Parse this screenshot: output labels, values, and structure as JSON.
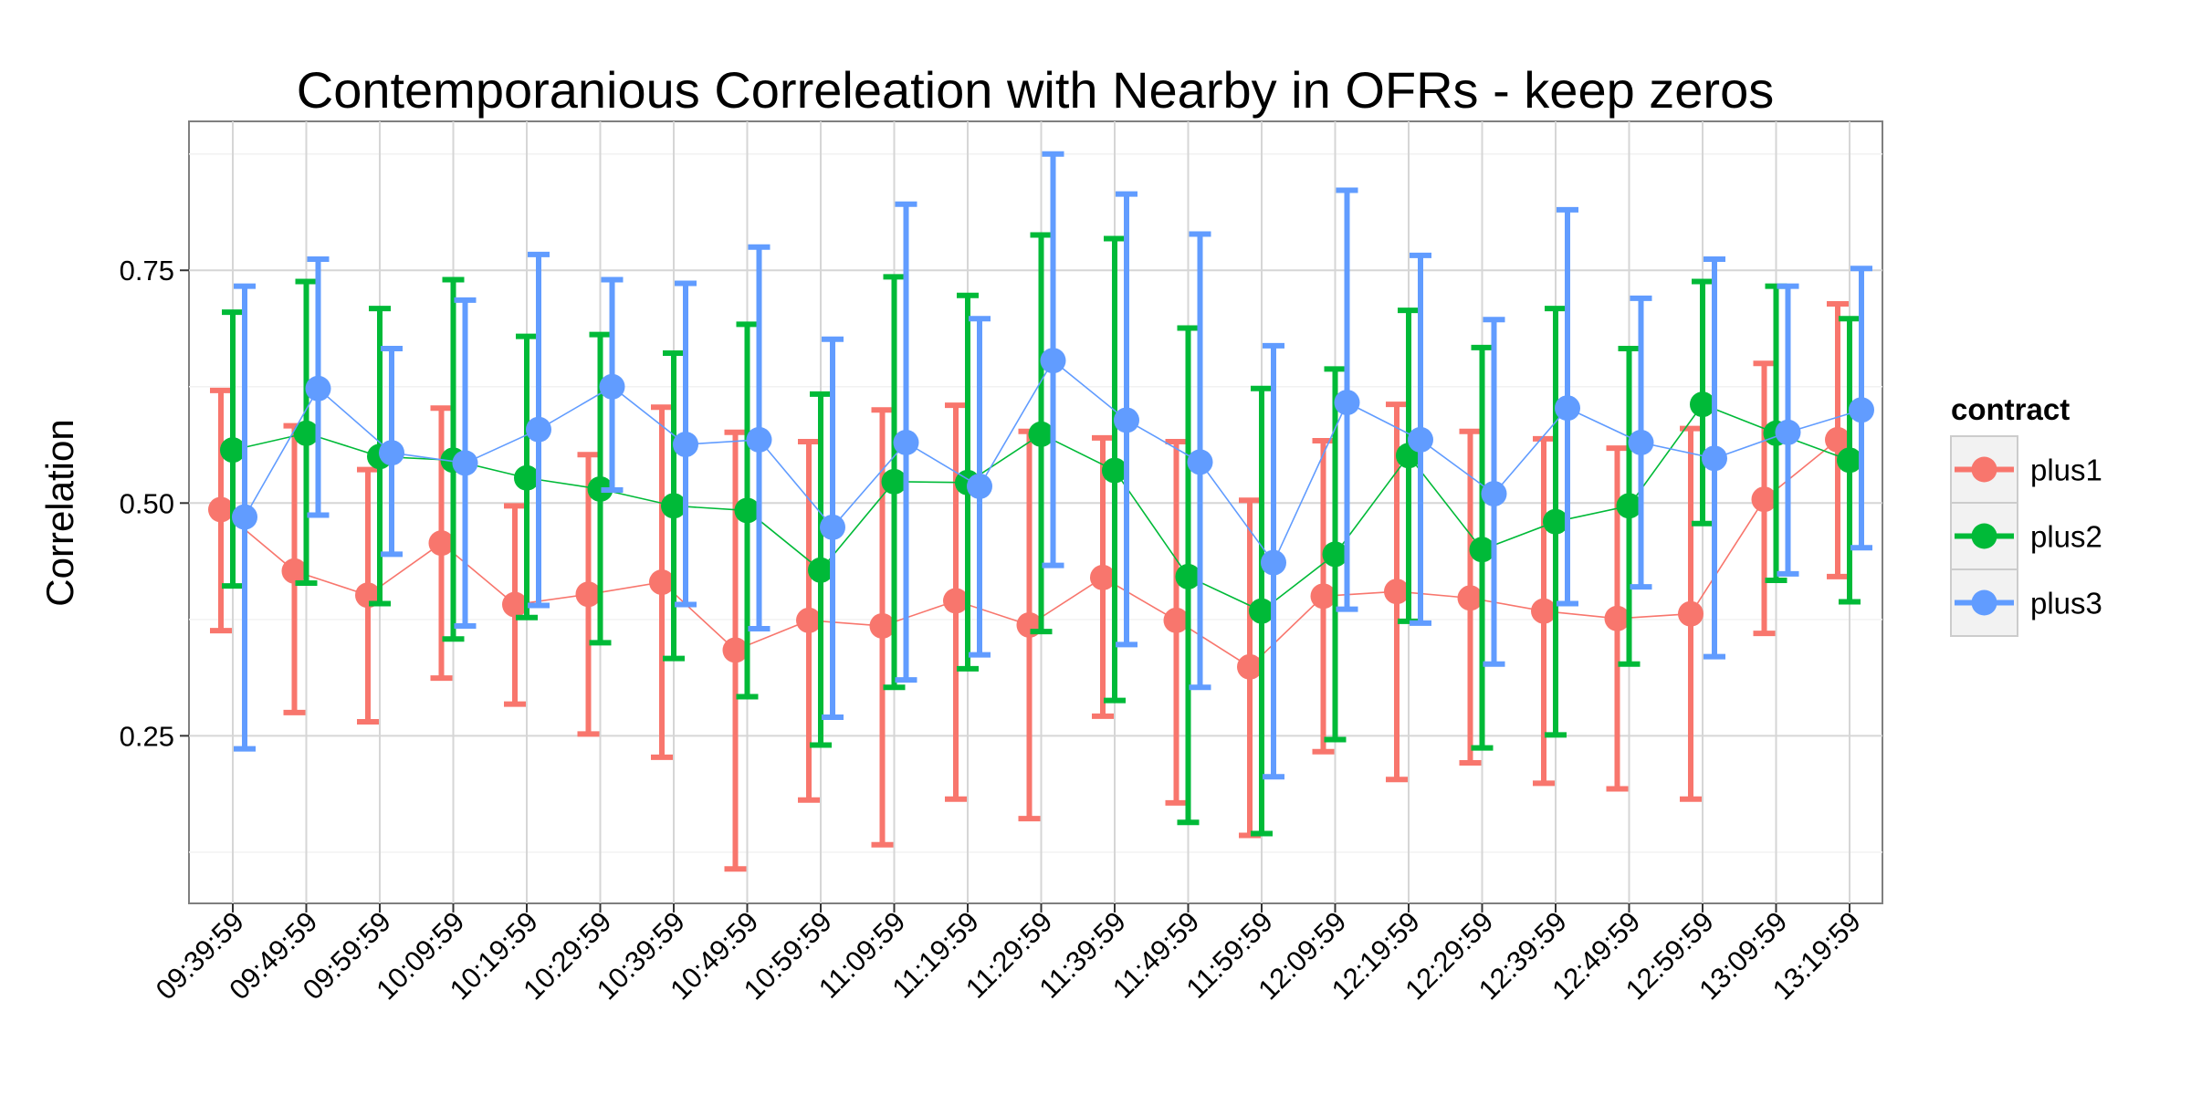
{
  "chart_data": {
    "type": "line",
    "title": "Contemporanious Correleation with Nearby in OFRs - keep zeros",
    "xlabel": "",
    "ylabel": "Correlation",
    "categories": [
      "09:39:59",
      "09:49:59",
      "09:59:59",
      "10:09:59",
      "10:19:59",
      "10:29:59",
      "10:39:59",
      "10:49:59",
      "10:59:59",
      "11:09:59",
      "11:19:59",
      "11:29:59",
      "11:39:59",
      "11:49:59",
      "11:59:59",
      "12:09:59",
      "12:19:59",
      "12:29:59",
      "12:39:59",
      "12:49:59",
      "12:59:59",
      "13:09:59",
      "13:19:59"
    ],
    "ylim": [
      0.07,
      0.91
    ],
    "yticks": [
      0.25,
      0.5,
      0.75
    ],
    "ytick_labels": [
      "0.25",
      "0.50",
      "0.75"
    ],
    "grid": true,
    "legend": {
      "title": "contract",
      "position": "right"
    },
    "series": [
      {
        "name": "plus1",
        "color": "#F8766D",
        "values": [
          0.493,
          0.427,
          0.401,
          0.457,
          0.391,
          0.402,
          0.415,
          0.342,
          0.374,
          0.368,
          0.395,
          0.369,
          0.42,
          0.374,
          0.324,
          0.4,
          0.405,
          0.398,
          0.384,
          0.376,
          0.381,
          0.504,
          0.568
        ],
        "lower": [
          0.363,
          0.275,
          0.265,
          0.312,
          0.284,
          0.252,
          0.227,
          0.107,
          0.181,
          0.133,
          0.182,
          0.161,
          0.271,
          0.178,
          0.143,
          0.233,
          0.203,
          0.221,
          0.199,
          0.193,
          0.182,
          0.36,
          0.421
        ],
        "upper": [
          0.621,
          0.583,
          0.536,
          0.602,
          0.497,
          0.552,
          0.603,
          0.576,
          0.566,
          0.6,
          0.605,
          0.577,
          0.57,
          0.566,
          0.503,
          0.567,
          0.606,
          0.577,
          0.569,
          0.559,
          0.58,
          0.65,
          0.714
        ]
      },
      {
        "name": "plus2",
        "color": "#00BA38",
        "values": [
          0.557,
          0.575,
          0.55,
          0.546,
          0.527,
          0.515,
          0.497,
          0.492,
          0.428,
          0.523,
          0.522,
          0.574,
          0.535,
          0.421,
          0.384,
          0.445,
          0.551,
          0.45,
          0.48,
          0.497,
          0.606,
          0.575,
          0.546
        ],
        "lower": [
          0.411,
          0.414,
          0.392,
          0.354,
          0.377,
          0.35,
          0.333,
          0.292,
          0.24,
          0.302,
          0.322,
          0.362,
          0.288,
          0.157,
          0.145,
          0.246,
          0.373,
          0.237,
          0.251,
          0.327,
          0.478,
          0.417,
          0.394
        ],
        "upper": [
          0.705,
          0.738,
          0.709,
          0.74,
          0.679,
          0.681,
          0.661,
          0.692,
          0.617,
          0.743,
          0.723,
          0.788,
          0.784,
          0.688,
          0.623,
          0.644,
          0.707,
          0.667,
          0.709,
          0.666,
          0.738,
          0.733,
          0.698
        ]
      },
      {
        "name": "plus3",
        "color": "#619CFF",
        "values": [
          0.485,
          0.623,
          0.554,
          0.543,
          0.579,
          0.625,
          0.563,
          0.568,
          0.474,
          0.565,
          0.518,
          0.653,
          0.589,
          0.544,
          0.436,
          0.608,
          0.568,
          0.51,
          0.602,
          0.565,
          0.548,
          0.576,
          0.6
        ],
        "lower": [
          0.236,
          0.487,
          0.445,
          0.368,
          0.39,
          0.514,
          0.391,
          0.365,
          0.27,
          0.31,
          0.337,
          0.433,
          0.348,
          0.302,
          0.206,
          0.386,
          0.371,
          0.327,
          0.392,
          0.41,
          0.335,
          0.424,
          0.452
        ],
        "upper": [
          0.733,
          0.762,
          0.666,
          0.718,
          0.767,
          0.74,
          0.736,
          0.775,
          0.676,
          0.821,
          0.698,
          0.875,
          0.832,
          0.789,
          0.669,
          0.836,
          0.766,
          0.697,
          0.815,
          0.72,
          0.762,
          0.733,
          0.752
        ]
      }
    ]
  }
}
